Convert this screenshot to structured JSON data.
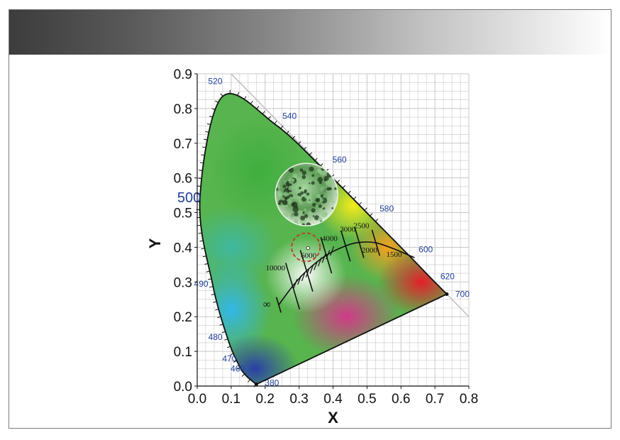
{
  "chart_data": {
    "type": "scatter",
    "title": "",
    "xlabel": "X",
    "ylabel": "Y",
    "xlim": [
      0.0,
      0.8
    ],
    "ylim": [
      0.0,
      0.9
    ],
    "x_ticks": [
      "0.0",
      "0.1",
      "0.2",
      "0.3",
      "0.4",
      "0.5",
      "0.6",
      "0.7",
      "0.8"
    ],
    "y_ticks": [
      "0.0",
      "0.1",
      "0.2",
      "0.3",
      "0.4",
      "0.5",
      "0.6",
      "0.7",
      "0.8",
      "0.9"
    ],
    "grid": true,
    "spectral_locus": [
      {
        "wl": "380",
        "x": 0.174,
        "y": 0.005
      },
      {
        "wl": "460",
        "x": 0.144,
        "y": 0.03
      },
      {
        "wl": "470",
        "x": 0.124,
        "y": 0.058
      },
      {
        "wl": "480",
        "x": 0.091,
        "y": 0.133
      },
      {
        "wl": "490",
        "x": 0.045,
        "y": 0.295
      },
      {
        "wl": "500",
        "x": 0.008,
        "y": 0.538
      },
      {
        "wl": "520",
        "x": 0.074,
        "y": 0.834
      },
      {
        "wl": "540",
        "x": 0.23,
        "y": 0.754
      },
      {
        "wl": "560",
        "x": 0.373,
        "y": 0.624
      },
      {
        "wl": "580",
        "x": 0.512,
        "y": 0.487
      },
      {
        "wl": "600",
        "x": 0.627,
        "y": 0.373
      },
      {
        "wl": "620",
        "x": 0.691,
        "y": 0.308
      },
      {
        "wl": "700",
        "x": 0.735,
        "y": 0.265
      }
    ],
    "planckian_locus": [
      {
        "cct": "1500",
        "x": 0.586,
        "y": 0.393
      },
      {
        "cct": "2000",
        "x": 0.526,
        "y": 0.413
      },
      {
        "cct": "2500",
        "x": 0.477,
        "y": 0.414
      },
      {
        "cct": "3000",
        "x": 0.437,
        "y": 0.404
      },
      {
        "cct": "4000",
        "x": 0.38,
        "y": 0.377
      },
      {
        "cct": "6000",
        "x": 0.322,
        "y": 0.332
      },
      {
        "cct": "10000",
        "x": 0.281,
        "y": 0.288
      },
      {
        "cct": "∞",
        "x": 0.24,
        "y": 0.234
      }
    ],
    "highlighted_point": {
      "label": "6000",
      "x": 0.32,
      "y": 0.4
    },
    "colors": {
      "spectral_locus": "#111111",
      "highlight_circle": "#c0392b",
      "wavelength_labels": "#1f3f9a",
      "grid": "#c8c8c8"
    }
  },
  "inset_image": {
    "description_icon": "algae-micrograph-icon"
  }
}
